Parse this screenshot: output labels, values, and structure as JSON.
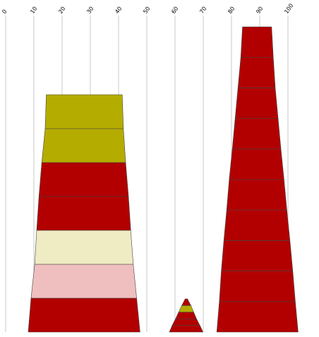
{
  "chart_data": {
    "type": "area",
    "title": "",
    "xlabel": "",
    "ylabel": "",
    "x_ticks": [
      "0",
      "10",
      "20",
      "30",
      "40",
      "50",
      "60",
      "70",
      "80",
      "90",
      "100"
    ],
    "xlim": [
      0,
      108
    ],
    "grid": true,
    "colors": {
      "red": "#b20000",
      "olive": "#b5ac00",
      "cream": "#efebc3",
      "pink": "#efbfbf"
    },
    "pyramids": [
      {
        "name": "",
        "layers": [
          {
            "x_left": 8.0,
            "x_right": 47.6,
            "color": "red"
          },
          {
            "x_left": 9.0,
            "x_right": 46.4,
            "color": "pink"
          },
          {
            "x_left": 10.3,
            "x_right": 45.2,
            "color": "cream"
          },
          {
            "x_left": 11.0,
            "x_right": 44.3,
            "color": "red"
          },
          {
            "x_left": 11.8,
            "x_right": 43.5,
            "color": "red"
          },
          {
            "x_left": 12.8,
            "x_right": 42.5,
            "color": "olive"
          },
          {
            "x_left": 14.0,
            "x_right": 41.7,
            "color": "olive"
          }
        ]
      },
      {
        "name": "",
        "layers": [
          {
            "x_left": 58.0,
            "x_right": 69.9,
            "color": "red"
          },
          {
            "x_left": 59.0,
            "x_right": 68.8,
            "color": "red"
          },
          {
            "x_left": 60.2,
            "x_right": 67.6,
            "color": "red"
          },
          {
            "x_left": 61.3,
            "x_right": 66.6,
            "color": "olive"
          },
          {
            "x_left": 62.4,
            "x_right": 65.6,
            "color": "red"
          }
        ]
      },
      {
        "name": "",
        "layers": [
          {
            "x_left": 74.8,
            "x_right": 103.6,
            "color": "red"
          },
          {
            "x_left": 75.7,
            "x_right": 102.6,
            "color": "red"
          },
          {
            "x_left": 76.4,
            "x_right": 101.7,
            "color": "red"
          },
          {
            "x_left": 77.3,
            "x_right": 100.7,
            "color": "red"
          },
          {
            "x_left": 78.3,
            "x_right": 99.6,
            "color": "red"
          },
          {
            "x_left": 79.2,
            "x_right": 98.6,
            "color": "red"
          },
          {
            "x_left": 80.3,
            "x_right": 97.5,
            "color": "red"
          },
          {
            "x_left": 81.3,
            "x_right": 96.5,
            "color": "red"
          },
          {
            "x_left": 82.3,
            "x_right": 95.5,
            "color": "red"
          },
          {
            "x_left": 83.3,
            "x_right": 94.8,
            "color": "red"
          }
        ]
      }
    ]
  }
}
